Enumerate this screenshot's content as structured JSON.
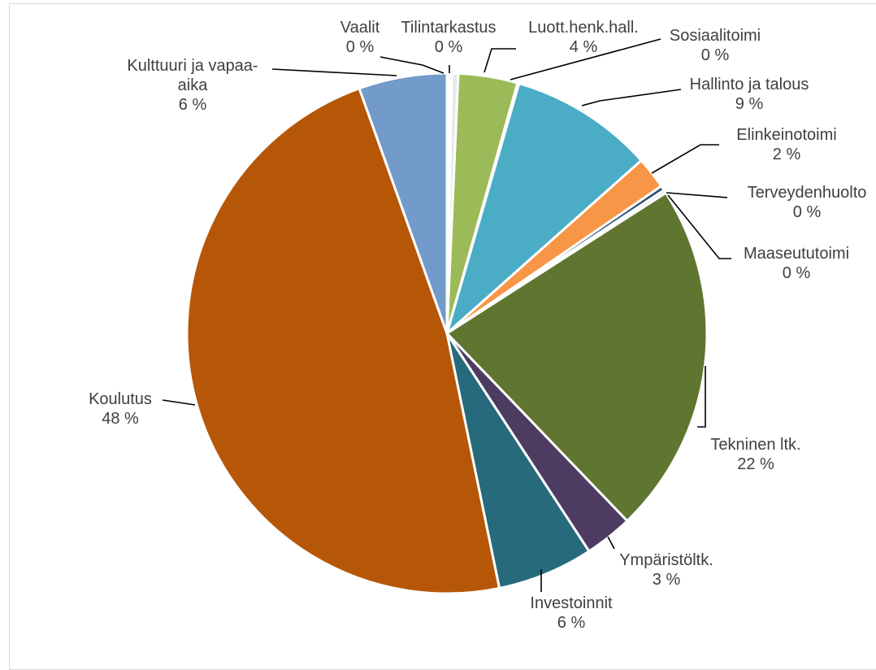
{
  "chart_data": {
    "type": "pie",
    "title": "",
    "slices": [
      {
        "name": "Vaalit",
        "value": 0.3,
        "label_text": "0 %",
        "color": "#FFFFFF"
      },
      {
        "name": "Tilintarkastus",
        "value": 0.4,
        "label_text": "0 %",
        "color": "#E8E8E8"
      },
      {
        "name": "Luott.henk.hall.",
        "value": 3.7,
        "label_text": "4 %",
        "color": "#9BBB59"
      },
      {
        "name": "Sosiaalitoimi",
        "value": 0.1,
        "label_text": "0 %",
        "color": "#8064A2"
      },
      {
        "name": "Hallinto ja talous",
        "value": 9.0,
        "label_text": "9 %",
        "color": "#4BACC6"
      },
      {
        "name": "Elinkeinotoimi",
        "value": 2.0,
        "label_text": "2 %",
        "color": "#F79646"
      },
      {
        "name": "Terveydenhuolto",
        "value": 0.3,
        "label_text": "0 %",
        "color": "#2C4D75"
      },
      {
        "name": "Maaseututoimi",
        "value": 0.2,
        "label_text": "0 %",
        "color": "#D9D9D9"
      },
      {
        "name": "Tekninen ltk.",
        "value": 22.0,
        "label_text": "22 %",
        "color": "#5F7530"
      },
      {
        "name": "Ympäristöltk.",
        "value": 3.0,
        "label_text": "3 %",
        "color": "#4D3B62"
      },
      {
        "name": "Investoinnit",
        "value": 6.0,
        "label_text": "6 %",
        "color": "#276A7C"
      },
      {
        "name": "Koulutus",
        "value": 48.0,
        "label_text": "48 %",
        "color": "#B65708"
      },
      {
        "name": "Kulttuuri ja vapaa-aika",
        "value": 5.5,
        "label_text": "6 %",
        "color": "#729ACA"
      }
    ]
  },
  "labels": [
    {
      "lines": [
        "Vaalit",
        "0 %"
      ]
    },
    {
      "lines": [
        "Tilintarkastus",
        "0 %"
      ]
    },
    {
      "lines": [
        "Luott.henk.hall.",
        "4 %"
      ]
    },
    {
      "lines": [
        "Sosiaalitoimi",
        "0 %"
      ]
    },
    {
      "lines": [
        "Hallinto ja talous",
        "9 %"
      ]
    },
    {
      "lines": [
        "Elinkeinotoimi",
        "2 %"
      ]
    },
    {
      "lines": [
        "Terveydenhuolto",
        "0 %"
      ]
    },
    {
      "lines": [
        "Maaseututoimi",
        "0 %"
      ]
    },
    {
      "lines": [
        "Tekninen ltk.",
        "22 %"
      ]
    },
    {
      "lines": [
        "Ympäristöltk.",
        "3 %"
      ]
    },
    {
      "lines": [
        "Investoinnit",
        "6 %"
      ]
    },
    {
      "lines": [
        "Koulutus",
        "48 %"
      ]
    },
    {
      "lines": [
        "Kulttuuri ja vapaa-",
        "aika",
        "6 %"
      ]
    }
  ]
}
